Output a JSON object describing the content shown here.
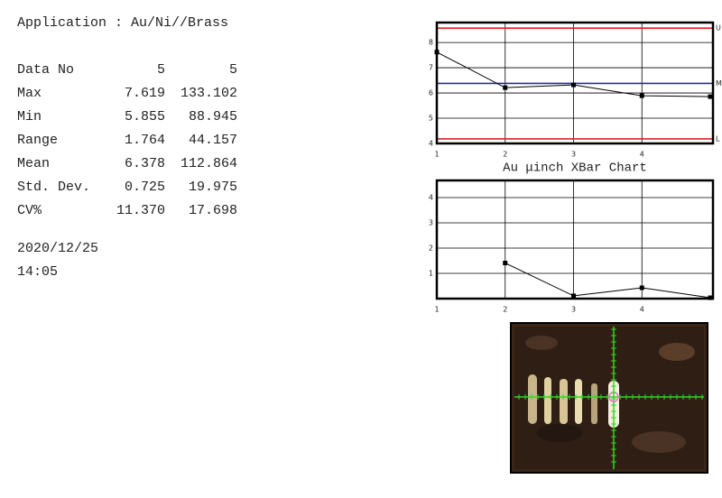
{
  "header": {
    "application": "Application : Au/Ni//Brass"
  },
  "table": {
    "rows": [
      [
        "Data No",
        "5",
        "5"
      ],
      [
        "Max",
        "7.619",
        "133.102"
      ],
      [
        "Min",
        "5.855",
        "88.945"
      ],
      [
        "Range",
        "1.764",
        "44.157"
      ],
      [
        "Mean",
        "6.378",
        "112.864"
      ],
      [
        "Std. Dev.",
        "0.725",
        "19.975"
      ],
      [
        "CV%",
        "11.370",
        "17.698"
      ]
    ]
  },
  "footer": {
    "date": "2020/12/25",
    "time": "14:05"
  },
  "chart_data": [
    {
      "type": "line",
      "title": "Au μinch XBar Chart",
      "x": [
        1,
        2,
        3,
        4,
        5
      ],
      "values": [
        7.619,
        6.21,
        6.32,
        5.89,
        5.855
      ],
      "color": "#000000",
      "xlim": [
        1,
        5
      ],
      "xticks": [
        1,
        2,
        3,
        4
      ],
      "ylim": [
        4,
        8.79
      ],
      "yticks": [
        4,
        5,
        6,
        7,
        8
      ],
      "grid": true,
      "control_lines": [
        {
          "label": "U",
          "value": 8.57,
          "color": "#e02020"
        },
        {
          "label": "M",
          "value": 6.378,
          "color": "#2a2aa0"
        },
        {
          "label": "L",
          "value": 4.18,
          "color": "#e02020"
        }
      ]
    },
    {
      "type": "line",
      "x": [
        1,
        2,
        3,
        4,
        5
      ],
      "values": [
        null,
        1.41,
        0.11,
        0.43,
        0.035
      ],
      "color": "#000000",
      "xlim": [
        1,
        5
      ],
      "xticks": [
        1,
        2,
        3,
        4
      ],
      "ylim": [
        0,
        4.68
      ],
      "yticks": [
        1,
        2,
        3,
        4
      ],
      "grid": true
    }
  ]
}
